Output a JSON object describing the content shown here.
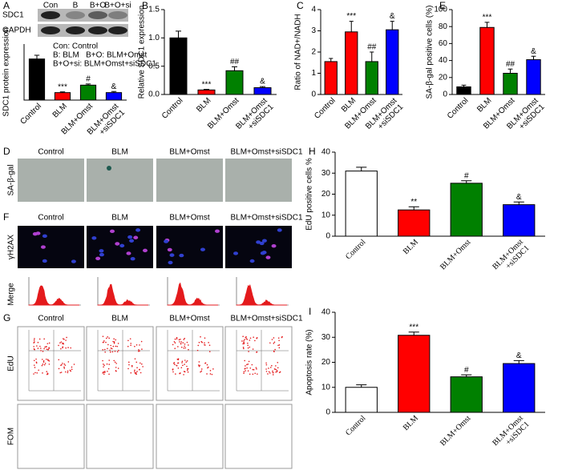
{
  "figure": {
    "panel_letters": [
      "A",
      "B",
      "C",
      "E",
      "D",
      "F",
      "G",
      "H",
      "I"
    ],
    "blot": {
      "lanes": [
        "Con",
        "B",
        "B+O",
        "B+O+si"
      ],
      "bands": [
        "SDC1",
        "GAPDH"
      ],
      "legend": [
        "Con: Control",
        "B: BLM   B+O: BLM+Omst",
        "B+O+si: BLM+Omst+siSDC1"
      ]
    },
    "micrographs": [
      {
        "columns": [
          "Control",
          "BLM",
          "BLM+Omst",
          "BLM+Omst+siSDC1"
        ],
        "rows": [
          "SA-β-gal"
        ]
      },
      {
        "columns": [
          "Control",
          "BLM",
          "BLM+Omst",
          "BLM+Omst+siSDC1"
        ],
        "rows": [
          "γH2AX",
          "Merge"
        ]
      },
      {
        "columns": [
          "Control",
          "BLM",
          "BLM+Omst",
          "BLM+Omst+siSDC1"
        ],
        "rows": [
          "EdU",
          "FOM"
        ]
      }
    ]
  },
  "chart_data": [
    {
      "type": "bar",
      "y_label": "SDC1 protein expression",
      "categories": [
        "Control",
        "BLM",
        "BLM+Omst",
        "BLM+Omst\n+siSDC1"
      ],
      "values": [
        1.1,
        0.2,
        0.4,
        0.2
      ],
      "errors": [
        0.1,
        0.02,
        0.03,
        0.03
      ],
      "colors": [
        "#000000",
        "#ff0000",
        "#008000",
        "#0000ff"
      ],
      "annotations": [
        null,
        "***",
        "#",
        "&"
      ],
      "ylim": [
        0,
        1.5
      ]
    },
    {
      "type": "bar",
      "y_label": "Relative SDC1 expression",
      "categories": [
        "Control",
        "BLM",
        "BLM+Omst",
        "BLM+Omst\n+siSDC1"
      ],
      "values": [
        1.0,
        0.08,
        0.42,
        0.12
      ],
      "errors": [
        0.12,
        0.01,
        0.07,
        0.02
      ],
      "colors": [
        "#000000",
        "#ff0000",
        "#008000",
        "#0000ff"
      ],
      "annotations": [
        null,
        "***",
        "##",
        "&"
      ],
      "ylim": [
        0,
        1.5
      ],
      "yticks": [
        {
          "value": 0,
          "label": "0.0"
        },
        0.5,
        {
          "value": 1,
          "label": "1.0"
        },
        1.5
      ]
    },
    {
      "type": "bar",
      "y_label": "Ratio of NAD+/NADH",
      "categories": [
        "Control",
        "BLM",
        "BLM+Omst",
        "BLM+Omst\n+siSDC1"
      ],
      "values": [
        1.55,
        2.95,
        1.55,
        3.05
      ],
      "errors": [
        0.15,
        0.5,
        0.45,
        0.4
      ],
      "colors": [
        "#ff0000",
        "#ff0000",
        "#008000",
        "#0000ff"
      ],
      "annotations": [
        null,
        "***",
        "##",
        "&"
      ],
      "ylim": [
        0,
        4
      ],
      "yticks": [
        0,
        1,
        2,
        3,
        4
      ]
    },
    {
      "type": "bar",
      "y_label": "SA-β-gal positive cells (%)",
      "categories": [
        "Control",
        "BLM",
        "BLM+Omst",
        "BLM+Omst\n+siSDC1"
      ],
      "values": [
        9,
        79,
        25,
        41
      ],
      "errors": [
        2,
        6,
        5,
        4
      ],
      "colors": [
        "#000000",
        "#ff0000",
        "#008000",
        "#0000ff"
      ],
      "annotations": [
        null,
        "***",
        "##",
        "&"
      ],
      "ylim": [
        0,
        100
      ],
      "yticks": [
        0,
        20,
        40,
        60,
        80,
        100
      ]
    },
    {
      "type": "bar",
      "y_label": "EdU positive cells %",
      "categories": [
        "Control",
        "BLM",
        "BLM+Omst",
        "BLM+Omst\n+siSDC1"
      ],
      "values": [
        31,
        12.5,
        25.2,
        15
      ],
      "errors": [
        1.8,
        1.5,
        1.2,
        1.3
      ],
      "colors": [
        "#ffffff",
        "#ff0000",
        "#008000",
        "#0000ff"
      ],
      "annotations": [
        null,
        "**",
        "#",
        "&"
      ],
      "ylim": [
        0,
        40
      ],
      "yticks": [
        0,
        10,
        20,
        30,
        40
      ]
    },
    {
      "type": "bar",
      "y_label": "Apoptosis rate (%)",
      "categories": [
        "Control",
        "BLM",
        "BLM+Omst",
        "BLM+Omst\n+siSDC1"
      ],
      "values": [
        10,
        30.8,
        14.2,
        19.5
      ],
      "errors": [
        1,
        1.3,
        0.8,
        1.2
      ],
      "colors": [
        "#ffffff",
        "#ff0000",
        "#008000",
        "#0000ff"
      ],
      "annotations": [
        null,
        "***",
        "#",
        "&"
      ],
      "ylim": [
        0,
        40
      ],
      "yticks": [
        0,
        10,
        20,
        30,
        40
      ]
    }
  ]
}
